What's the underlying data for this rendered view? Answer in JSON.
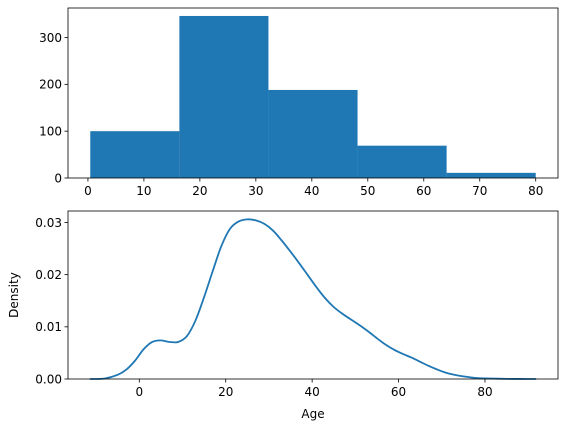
{
  "chart_data": [
    {
      "type": "bar",
      "subtype": "histogram",
      "color": "#1f77b4",
      "bins": [
        {
          "start": 0.42,
          "end": 16.34,
          "count": 100
        },
        {
          "start": 16.34,
          "end": 32.25,
          "count": 346
        },
        {
          "start": 32.25,
          "end": 48.17,
          "count": 188
        },
        {
          "start": 48.17,
          "end": 64.08,
          "count": 69
        },
        {
          "start": 64.08,
          "end": 80.0,
          "count": 11
        }
      ],
      "xlim": [
        -3.56,
        83.98
      ],
      "ylim": [
        0,
        363
      ],
      "xticks": [
        0,
        10,
        20,
        30,
        40,
        50,
        60,
        70,
        80
      ],
      "yticks": [
        0,
        100,
        200,
        300
      ],
      "xtick_labels": [
        "0",
        "10",
        "20",
        "30",
        "40",
        "50",
        "60",
        "70",
        "80"
      ],
      "ytick_labels": [
        "0",
        "100",
        "200",
        "300"
      ],
      "xlabel": "",
      "ylabel": "",
      "grid": false
    },
    {
      "type": "line",
      "subtype": "kde",
      "color": "#1f77b4",
      "x": [
        -11.3,
        -8,
        -5,
        -3,
        -1,
        1,
        3,
        5,
        7,
        9,
        11,
        13,
        15,
        17,
        19,
        21,
        23,
        25,
        27,
        29,
        31,
        33,
        35,
        37,
        39,
        41,
        43,
        45,
        47,
        49,
        51,
        53,
        55,
        57,
        59,
        61,
        63,
        65,
        67,
        69,
        71,
        73,
        75,
        78,
        81,
        85,
        88,
        91.7
      ],
      "y": [
        0.0,
        0.0001,
        0.0008,
        0.0018,
        0.0035,
        0.0057,
        0.0071,
        0.0074,
        0.0071,
        0.0071,
        0.0082,
        0.0112,
        0.0157,
        0.0207,
        0.0255,
        0.0288,
        0.0302,
        0.0306,
        0.0304,
        0.0297,
        0.0284,
        0.0265,
        0.0244,
        0.0222,
        0.0199,
        0.0176,
        0.0155,
        0.0138,
        0.0125,
        0.0114,
        0.0103,
        0.0091,
        0.0078,
        0.0066,
        0.0056,
        0.0048,
        0.0041,
        0.0033,
        0.0025,
        0.0018,
        0.0012,
        0.0008,
        0.0005,
        0.0002,
        0.0001,
        3e-05,
        1e-05,
        0.0
      ],
      "xlim": [
        -16.5,
        96.9
      ],
      "ylim": [
        0,
        0.0322
      ],
      "xticks": [
        0,
        20,
        40,
        60,
        80
      ],
      "yticks": [
        0.0,
        0.01,
        0.02,
        0.03
      ],
      "xtick_labels": [
        "0",
        "20",
        "40",
        "60",
        "80"
      ],
      "ytick_labels": [
        "0.00",
        "0.01",
        "0.02",
        "0.03"
      ],
      "xlabel": "Age",
      "ylabel": "Density",
      "grid": false
    }
  ]
}
